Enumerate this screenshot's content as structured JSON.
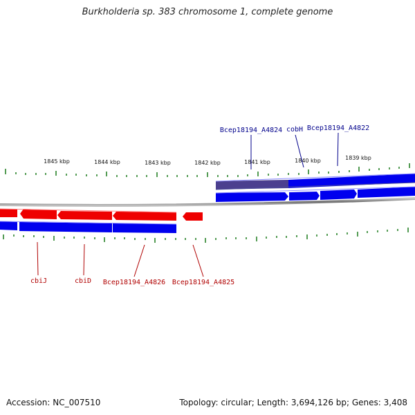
{
  "title": "Burkholderia sp. 383 chromosome 1, complete genome",
  "footer": {
    "accession": "Accession: NC_007510",
    "topology": "Topology: circular; Length: 3,694,126 bp; Genes: 3,408"
  },
  "kbp_labels": [
    "1845 kbp",
    "1844 kbp",
    "1843 kbp",
    "1842 kbp",
    "1841 kbp",
    "1840 kbp",
    "1839 kbp"
  ],
  "gene_labels": {
    "forward": [
      "Bcep18194_A4824",
      "cobH",
      "Bcep18194_A4822"
    ],
    "reverse": [
      "cbiJ",
      "cbiD",
      "Bcep18194_A4826",
      "Bcep18194_A4825"
    ]
  },
  "colors": {
    "forward": "#0000ee",
    "forward_dark": "#4b3f8f",
    "reverse": "#ee0000",
    "ticks": "#1a7a1a",
    "backbone": "#8a8a8a"
  }
}
